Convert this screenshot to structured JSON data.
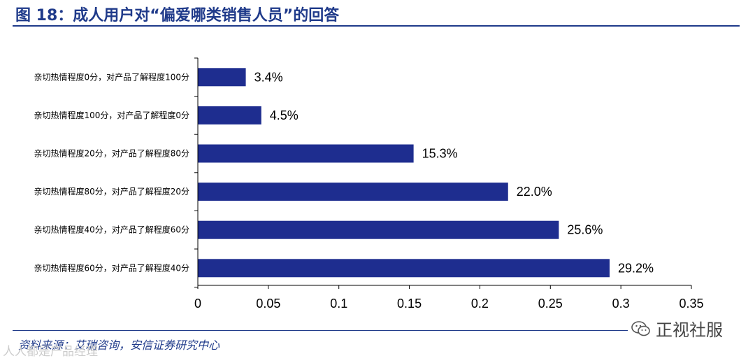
{
  "header": {
    "title": "图 18：成人用户对“偏爱哪类销售人员”的回答"
  },
  "chart_data": {
    "type": "bar",
    "orientation": "horizontal",
    "categories": [
      "亲切热情程度0分，对产品了解程度100分",
      "亲切热情程度100分，对产品了解程度0分",
      "亲切热情程度20分，对产品了解程度80分",
      "亲切热情程度80分，对产品了解程度20分",
      "亲切热情程度40分，对产品了解程度60分",
      "亲切热情程度60分，对产品了解程度40分"
    ],
    "values": [
      0.034,
      0.045,
      0.153,
      0.22,
      0.256,
      0.292
    ],
    "data_labels": [
      "3.4%",
      "4.5%",
      "15.3%",
      "22.0%",
      "25.6%",
      "29.2%"
    ],
    "xlim": [
      0,
      0.35
    ],
    "x_ticks": [
      "0",
      "0.05",
      "0.1",
      "0.15",
      "0.2",
      "0.25",
      "0.3",
      "0.35"
    ],
    "x_tick_values": [
      0,
      0.05,
      0.1,
      0.15,
      0.2,
      0.25,
      0.3,
      0.35
    ],
    "grid": false,
    "bar_color": "#1e2d8f"
  },
  "footer": {
    "source": "资料来源：艾瑞咨询，安信证券研究中心",
    "watermark": "正视社服",
    "watermark_icon": "wechat-icon",
    "bottom_watermark": "人人都是产品经理"
  },
  "colors": {
    "accent": "#1f3a8a",
    "bar": "#1e2d8f"
  }
}
